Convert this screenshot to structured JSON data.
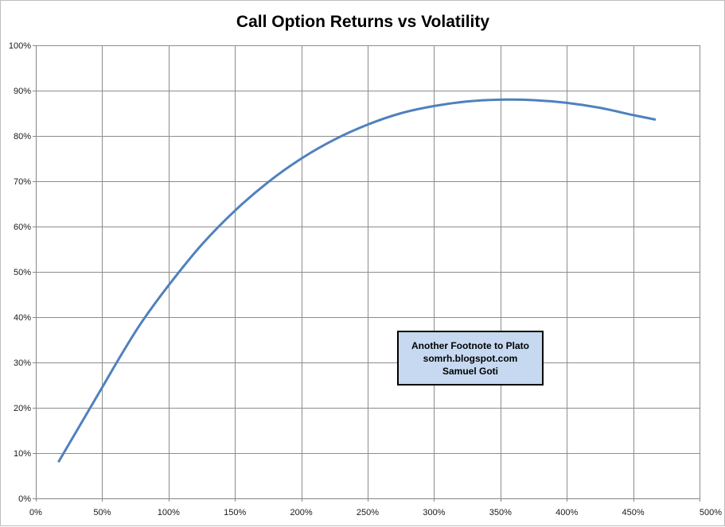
{
  "chart_data": {
    "type": "line",
    "title": "Call Option Returns vs Volatility",
    "xlabel": "",
    "ylabel": "",
    "xlim": [
      0,
      5
    ],
    "ylim": [
      0,
      1
    ],
    "x_tick_labels": [
      "0%",
      "50%",
      "100%",
      "150%",
      "200%",
      "250%",
      "300%",
      "350%",
      "400%",
      "450%",
      "500%"
    ],
    "y_tick_labels": [
      "0%",
      "10%",
      "20%",
      "30%",
      "40%",
      "50%",
      "60%",
      "70%",
      "80%",
      "90%",
      "100%"
    ],
    "grid": true,
    "legend": "none",
    "series": [
      {
        "color": "#4f81bd",
        "x": [
          0.17,
          0.25,
          0.35,
          0.5,
          0.65,
          0.8,
          1.0,
          1.25,
          1.5,
          1.75,
          2.0,
          2.25,
          2.5,
          2.75,
          3.0,
          3.25,
          3.5,
          3.75,
          4.0,
          4.25,
          4.5,
          4.67
        ],
        "y": [
          0.08,
          0.12,
          0.17,
          0.245,
          0.32,
          0.39,
          0.47,
          0.56,
          0.635,
          0.698,
          0.75,
          0.792,
          0.825,
          0.85,
          0.866,
          0.876,
          0.88,
          0.879,
          0.873,
          0.862,
          0.846,
          0.836
        ]
      }
    ],
    "annotation": [
      "Another Footnote to Plato",
      "somrh.blogspot.com",
      "Samuel Goti"
    ]
  }
}
